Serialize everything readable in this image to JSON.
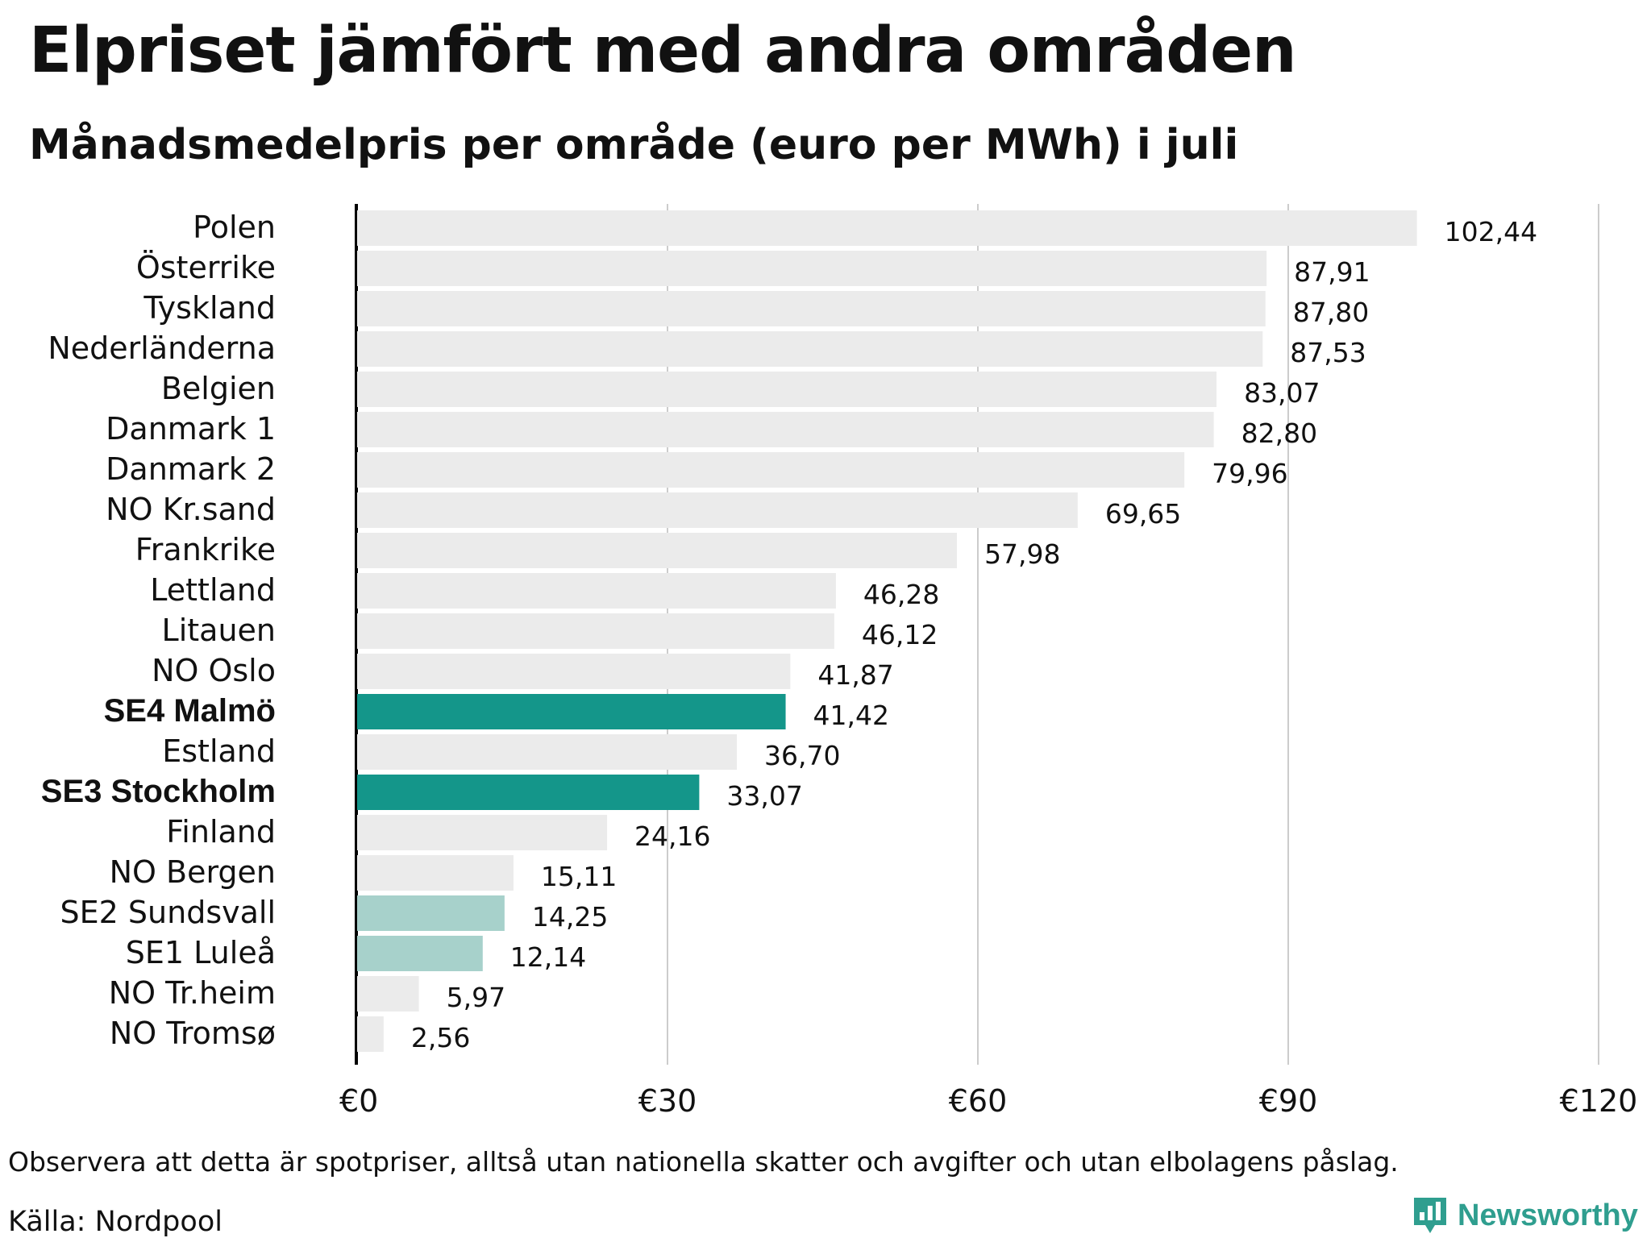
{
  "title": "Elpriset jämfört med andra områden",
  "subtitle": "Månadsmedelpris per område (euro per MWh) i juli",
  "chart_data": {
    "type": "bar",
    "orientation": "horizontal",
    "title": "Elpriset jämfört med andra områden",
    "subtitle": "Månadsmedelpris per område (euro per MWh) i juli",
    "categories": [
      "Polen",
      "Österrike",
      "Tyskland",
      "Nederländerna",
      "Belgien",
      "Danmark  1",
      "Danmark  2",
      "NO Kr.sand",
      "Frankrike",
      "Lettland",
      "Litauen",
      "NO Oslo",
      "SE4 Malmö",
      "Estland",
      "SE3 Stockholm",
      "Finland",
      "NO Bergen",
      "SE2  Sundsvall",
      "SE1  Luleå",
      "NO Tr.heim",
      "NO Tromsø"
    ],
    "values": [
      102.44,
      87.91,
      87.8,
      87.53,
      83.07,
      82.8,
      79.96,
      69.65,
      57.98,
      46.28,
      46.12,
      41.87,
      41.42,
      36.7,
      33.07,
      24.16,
      15.11,
      14.25,
      12.14,
      5.97,
      2.56
    ],
    "value_labels": [
      "102,44",
      "87,91",
      "87,80",
      "87,53",
      "83,07",
      "82,80",
      "79,96",
      "69,65",
      "57,98",
      "46,28",
      "46,12",
      "41,87",
      "41,42",
      "36,70",
      "33,07",
      "24,16",
      "15,11",
      "14,25",
      "12,14",
      "5,97",
      "2,56"
    ],
    "highlight": [
      "none",
      "none",
      "none",
      "none",
      "none",
      "none",
      "none",
      "none",
      "none",
      "none",
      "none",
      "none",
      "strong",
      "none",
      "strong",
      "none",
      "none",
      "light",
      "light",
      "none",
      "none"
    ],
    "colors": {
      "default": "#ebebeb",
      "strong": "#14968a",
      "light": "#a7d1cb",
      "grid": "#cccccc",
      "axis": "#000000"
    },
    "xlim": [
      0,
      120
    ],
    "x_ticks": [
      0,
      30,
      60,
      90,
      120
    ],
    "x_tick_labels": [
      "€0",
      "€30",
      "€60",
      "€90",
      "€120"
    ],
    "grid": true
  },
  "footer": {
    "note": "Observera att detta är spotpriser, alltså utan nationella skatter och avgifter och utan elbolagens påslag.",
    "source": "Källa: Nordpool",
    "brand": "Newsworthy",
    "brand_icon": "newsworthy-bar-chart-icon",
    "brand_color": "#2f9e8f"
  }
}
